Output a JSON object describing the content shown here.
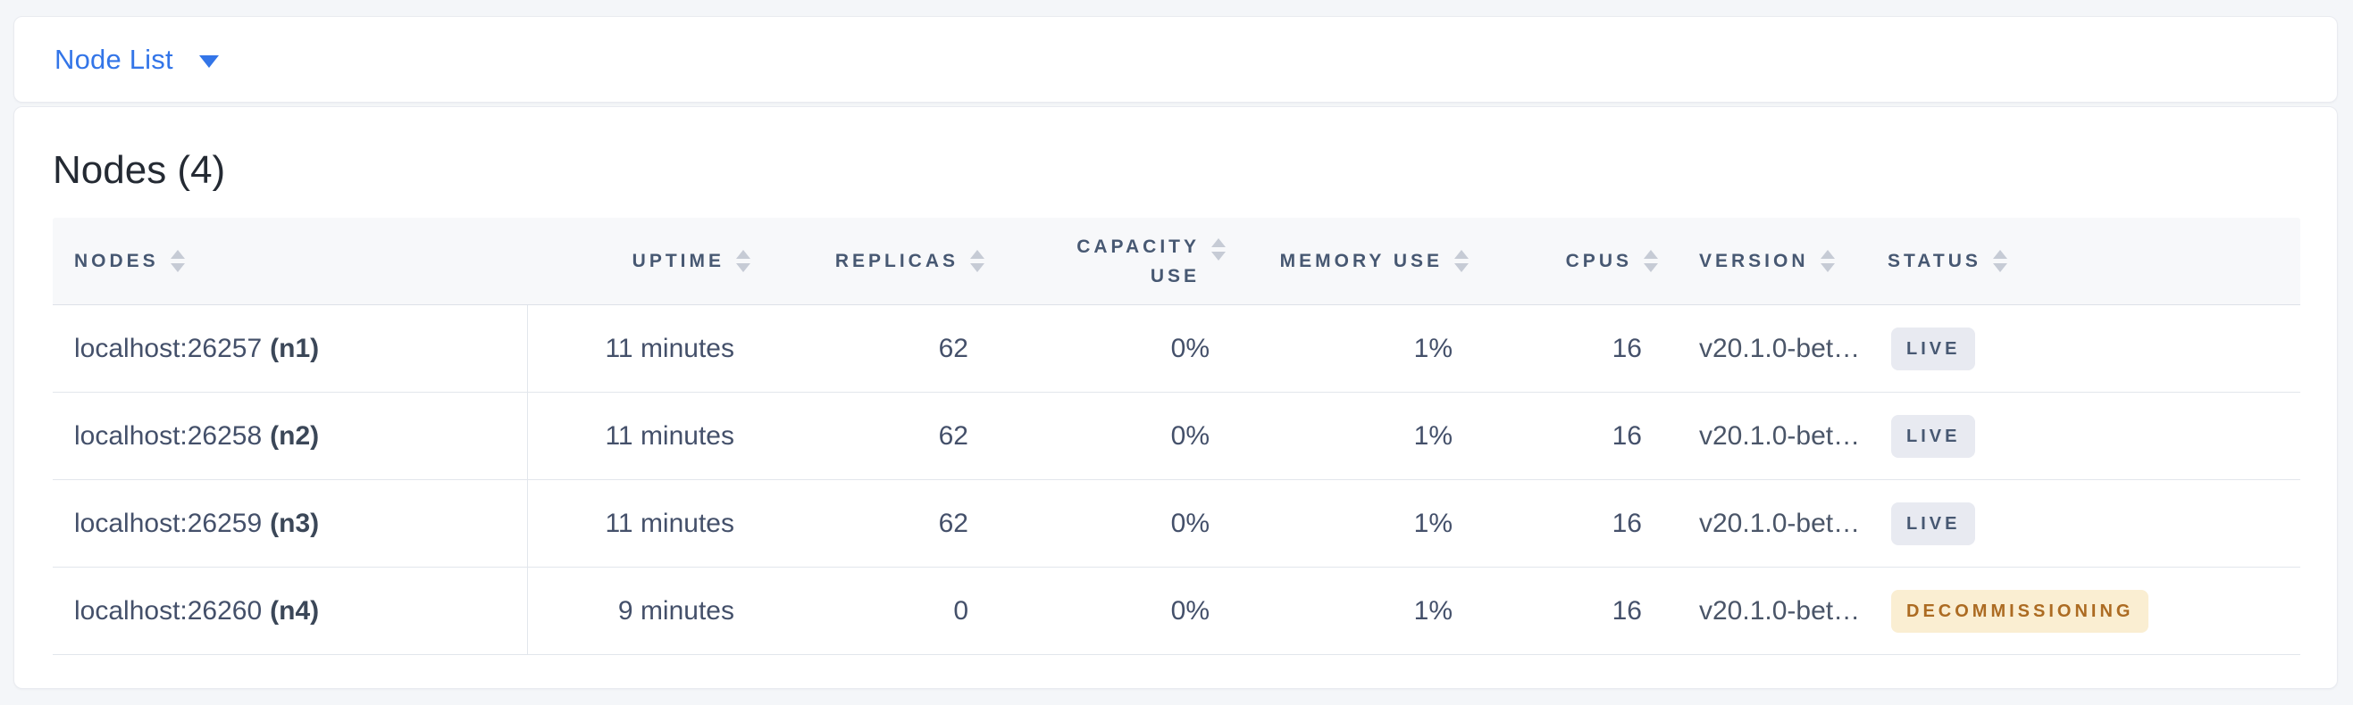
{
  "topbar": {
    "view_label": "Node List",
    "accent_color": "#3375E8"
  },
  "main": {
    "title": "Nodes (4)",
    "node_count": 4
  },
  "table": {
    "columns": [
      {
        "id": "nodes",
        "lines": [
          "NODES"
        ],
        "align": "left",
        "sortable": true
      },
      {
        "id": "uptime",
        "lines": [
          "UPTIME"
        ],
        "align": "right",
        "sortable": true
      },
      {
        "id": "replicas",
        "lines": [
          "REPLICAS"
        ],
        "align": "right",
        "sortable": true
      },
      {
        "id": "capacity-use",
        "lines": [
          "CAPACITY",
          "USE"
        ],
        "align": "right",
        "sortable": true
      },
      {
        "id": "memory-use",
        "lines": [
          "MEMORY USE"
        ],
        "align": "right",
        "sortable": true
      },
      {
        "id": "cpus",
        "lines": [
          "CPUS"
        ],
        "align": "right",
        "sortable": true
      },
      {
        "id": "version",
        "lines": [
          "VERSION"
        ],
        "align": "left",
        "sortable": true
      },
      {
        "id": "status",
        "lines": [
          "STATUS"
        ],
        "align": "left",
        "sortable": true
      }
    ],
    "rows": [
      {
        "address": "localhost:26257",
        "node_id": "(n1)",
        "uptime": "11 minutes",
        "replicas": "62",
        "capacity_use": "0%",
        "memory_use": "1%",
        "cpus": "16",
        "version": "v20.1.0-bet…",
        "status": {
          "label": "LIVE",
          "variant": "live"
        }
      },
      {
        "address": "localhost:26258",
        "node_id": "(n2)",
        "uptime": "11 minutes",
        "replicas": "62",
        "capacity_use": "0%",
        "memory_use": "1%",
        "cpus": "16",
        "version": "v20.1.0-bet…",
        "status": {
          "label": "LIVE",
          "variant": "live"
        }
      },
      {
        "address": "localhost:26259",
        "node_id": "(n3)",
        "uptime": "11 minutes",
        "replicas": "62",
        "capacity_use": "0%",
        "memory_use": "1%",
        "cpus": "16",
        "version": "v20.1.0-bet…",
        "status": {
          "label": "LIVE",
          "variant": "live"
        }
      },
      {
        "address": "localhost:26260",
        "node_id": "(n4)",
        "uptime": "9 minutes",
        "replicas": "0",
        "capacity_use": "0%",
        "memory_use": "1%",
        "cpus": "16",
        "version": "v20.1.0-bet…",
        "status": {
          "label": "DECOMMISSIONING",
          "variant": "decommissioning"
        }
      }
    ],
    "status_colors": {
      "live": {
        "background": "#E8EAF1",
        "text": "#475872"
      },
      "decommissioning": {
        "background": "#FAEED2",
        "text": "#AC6B22"
      }
    }
  }
}
